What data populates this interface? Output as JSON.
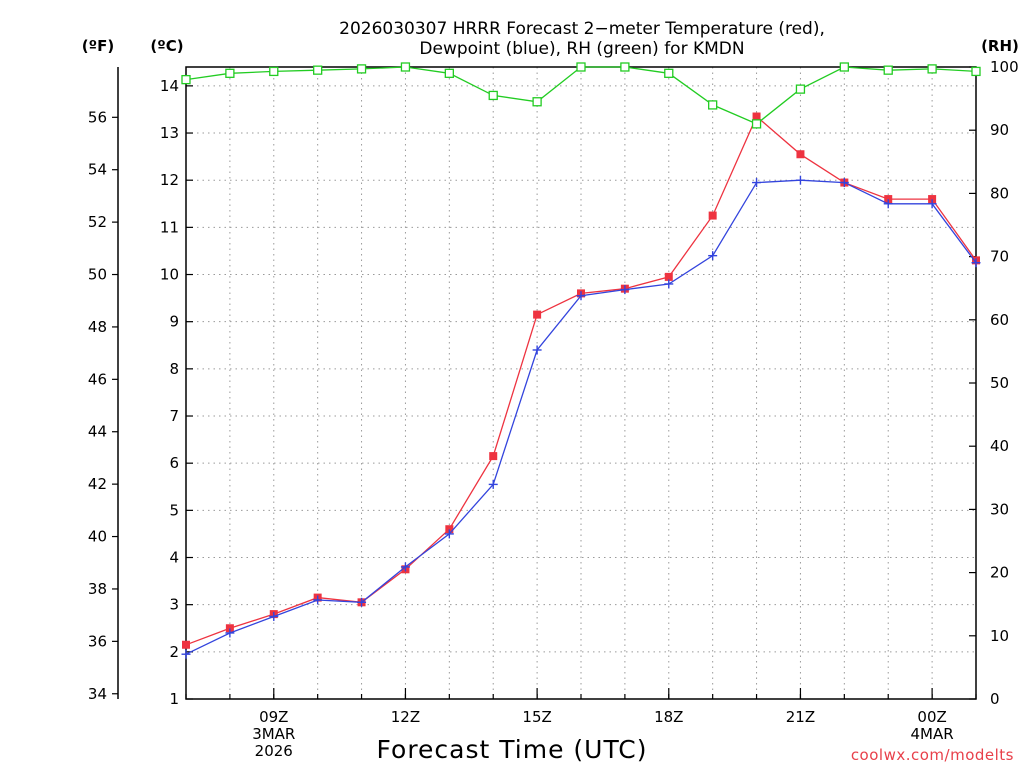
{
  "chart_data": {
    "type": "line",
    "title_lines": [
      "2026030307 HRRR Forecast 2−meter Temperature (red),",
      "Dewpoint (blue), RH (green) for KMDN"
    ],
    "unit_labels": {
      "fahrenheit": "(ºF)",
      "celsius": "(ºC)",
      "rh": "(RH)"
    },
    "xlabel": "Forecast Time (UTC)",
    "credit": "coolwx.com/modelts",
    "x_hours": [
      7,
      8,
      9,
      10,
      11,
      12,
      13,
      14,
      15,
      16,
      17,
      18,
      19,
      20,
      21,
      22,
      23,
      24,
      25
    ],
    "xlim": [
      7,
      25
    ],
    "ylim_celsius": [
      1,
      14.4
    ],
    "ylim_rh": [
      0,
      100
    ],
    "x_ticks": [
      {
        "hour": 9,
        "lines": [
          "09Z",
          "3MAR",
          "2026"
        ]
      },
      {
        "hour": 12,
        "lines": [
          "12Z"
        ]
      },
      {
        "hour": 15,
        "lines": [
          "15Z"
        ]
      },
      {
        "hour": 18,
        "lines": [
          "18Z"
        ]
      },
      {
        "hour": 21,
        "lines": [
          "21Z"
        ]
      },
      {
        "hour": 24,
        "lines": [
          "00Z",
          "4MAR"
        ]
      }
    ],
    "celsius_ticks": [
      "1",
      "2",
      "3",
      "4",
      "5",
      "6",
      "7",
      "8",
      "9",
      "10",
      "11",
      "12",
      "13",
      "14"
    ],
    "fahrenheit_ticks": [
      "34",
      "36",
      "38",
      "40",
      "42",
      "44",
      "46",
      "48",
      "50",
      "52",
      "54",
      "56"
    ],
    "rh_ticks": [
      "0",
      "10",
      "20",
      "30",
      "40",
      "50",
      "60",
      "70",
      "80",
      "90",
      "100"
    ],
    "series": [
      {
        "name": "Temperature",
        "color": "#ee3340",
        "axis": "celsius",
        "marker": "square-filled",
        "values": [
          2.15,
          2.5,
          2.8,
          3.15,
          3.05,
          3.75,
          4.6,
          6.15,
          9.15,
          9.6,
          9.7,
          9.95,
          11.25,
          13.35,
          12.55,
          11.95,
          11.6,
          11.6,
          10.3
        ]
      },
      {
        "name": "Dewpoint",
        "color": "#3344dd",
        "axis": "celsius",
        "marker": "plus",
        "values": [
          1.95,
          2.4,
          2.75,
          3.1,
          3.05,
          3.8,
          4.5,
          5.55,
          8.4,
          9.55,
          9.68,
          9.8,
          10.4,
          11.95,
          12.0,
          11.95,
          11.5,
          11.5,
          10.25
        ]
      },
      {
        "name": "RH",
        "color": "#22cc22",
        "axis": "rh",
        "marker": "square-open",
        "values": [
          98,
          99,
          99.3,
          99.5,
          99.7,
          100,
          99,
          95.5,
          94.5,
          100,
          100,
          99,
          94,
          91,
          96.5,
          100,
          99.5,
          99.7,
          99.3
        ]
      }
    ]
  }
}
